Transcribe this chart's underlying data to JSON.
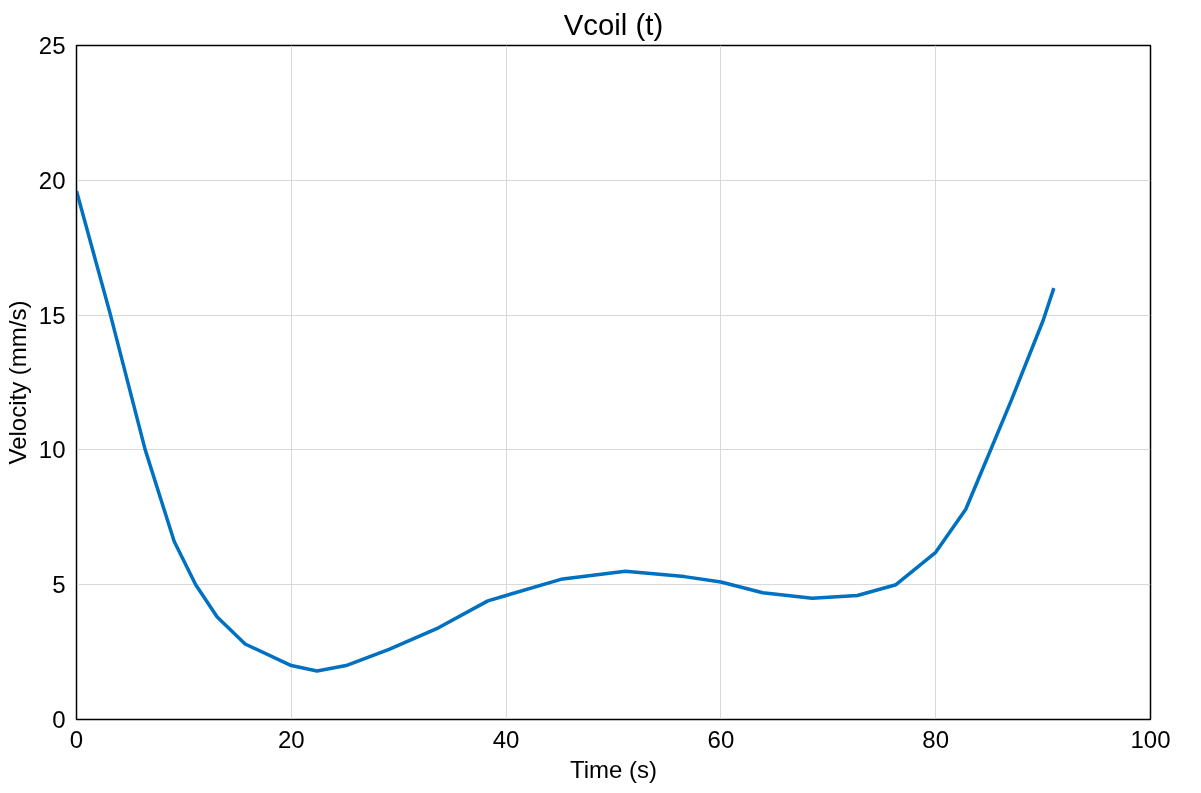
{
  "chart_data": {
    "type": "line",
    "title": "Vcoil (t)",
    "xlabel": "Time (s)",
    "ylabel": "Velocity (mm/s)",
    "x": [
      0,
      3.1,
      6.4,
      9.1,
      11.1,
      13.1,
      15.7,
      20,
      22.4,
      25.1,
      29.1,
      33.7,
      38.3,
      40,
      45.1,
      51.1,
      56.6,
      60,
      63.9,
      68.5,
      72.7,
      76.3,
      80,
      82.8,
      84.8,
      87,
      90,
      91
    ],
    "series": [
      {
        "color": "#0070c0",
        "values": [
          19.6,
          15.1,
          10.0,
          6.6,
          5.0,
          3.8,
          2.8,
          2.0,
          1.8,
          2.0,
          2.6,
          3.4,
          4.4,
          4.6,
          5.2,
          5.5,
          5.3,
          5.1,
          4.7,
          4.5,
          4.6,
          5.0,
          6.2,
          7.8,
          9.7,
          11.8,
          14.8,
          16.0
        ]
      }
    ],
    "xlim": [
      0,
      100
    ],
    "xticks": [
      0,
      20,
      40,
      60,
      80,
      100
    ],
    "ylim": [
      0,
      25
    ],
    "yticks": [
      0,
      5,
      10,
      15,
      20,
      25
    ],
    "grid": true,
    "marker": "none",
    "line_style": "solid"
  }
}
